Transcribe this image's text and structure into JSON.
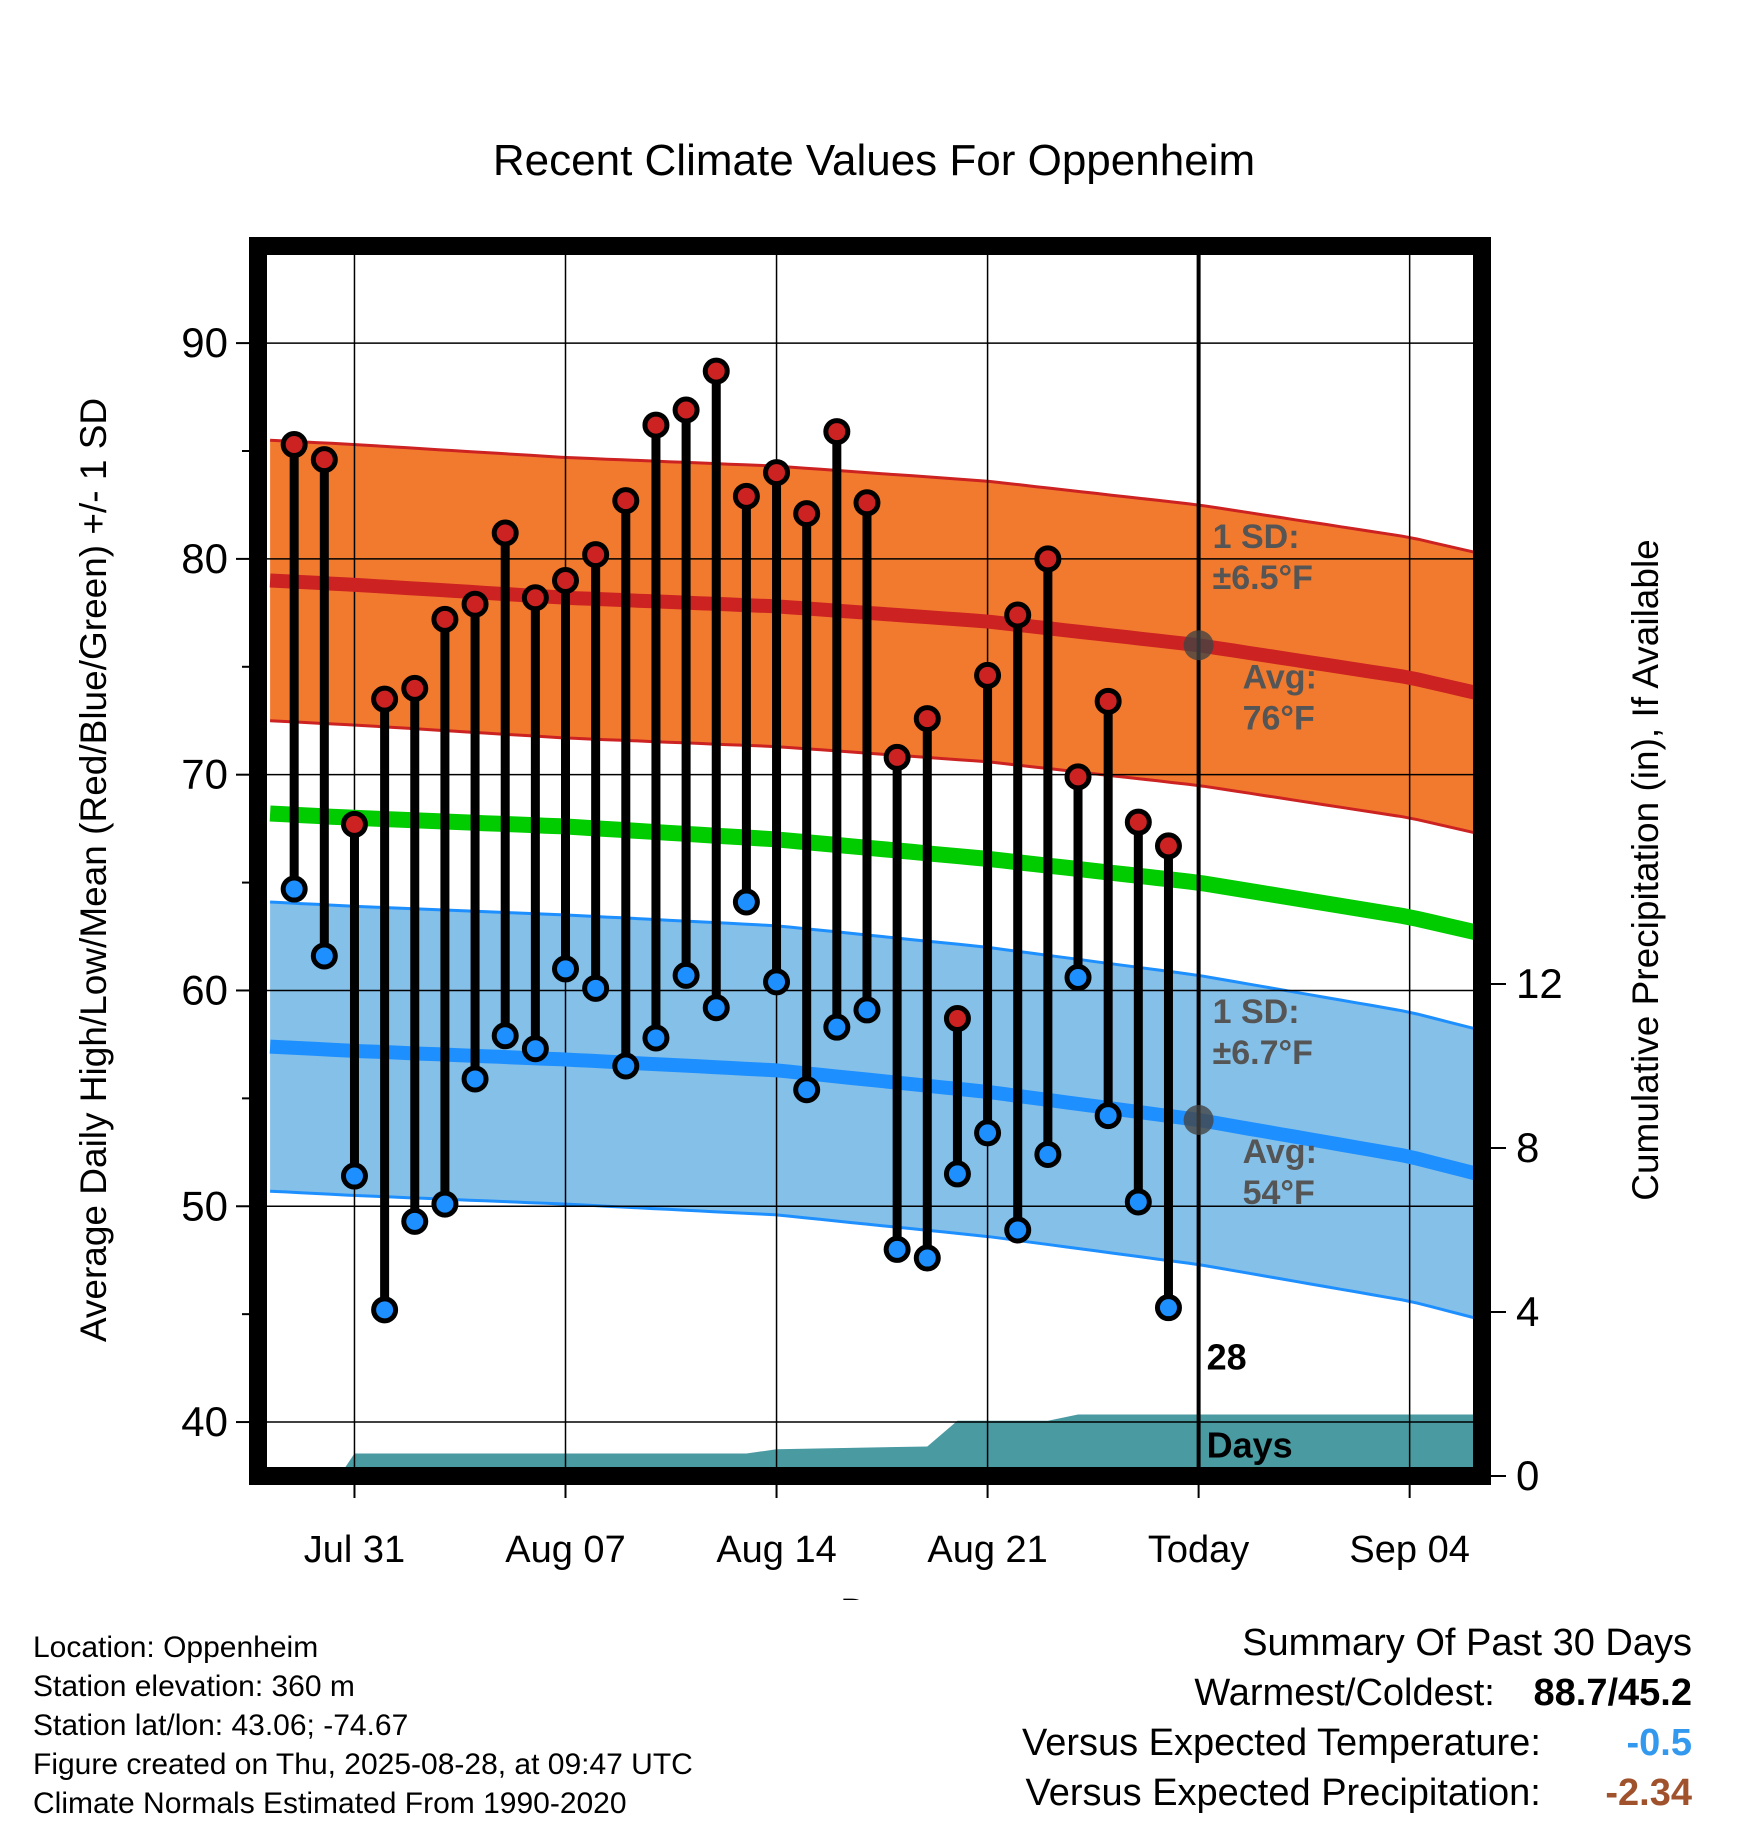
{
  "chart_data": {
    "type": "line",
    "title": "Recent Climate Values For Oppenheim",
    "xlabel": "Day",
    "ylabel_left": "Average Daily High/Low/Mean (Red/Blue/Green) +/- 1 SD",
    "ylabel_right": "Cumulative Precipitation (in), If Available",
    "x_ticks": [
      {
        "day": 0,
        "label": "Jul 31"
      },
      {
        "day": 7,
        "label": "Aug 07"
      },
      {
        "day": 14,
        "label": "Aug 14"
      },
      {
        "day": 21,
        "label": "Aug 21"
      },
      {
        "day": 28,
        "label": "Today"
      },
      {
        "day": 35,
        "label": "Sep 04"
      }
    ],
    "xlim": [
      -3.2,
      37.4
    ],
    "ylim_left": [
      37.5,
      94.5
    ],
    "y_ticks_left": [
      40,
      50,
      60,
      70,
      80,
      90
    ],
    "ylim_right": [
      0,
      30
    ],
    "y_ticks_right": [
      0,
      4,
      8,
      12
    ],
    "today_day": 28,
    "today_label": "28 Days",
    "observed": {
      "days": [
        -2,
        -1,
        0,
        1,
        2,
        3,
        4,
        5,
        6,
        7,
        8,
        9,
        10,
        11,
        12,
        13,
        14,
        15,
        16,
        17,
        18,
        19,
        20,
        21,
        22,
        23,
        24,
        25,
        26,
        27
      ],
      "highs": [
        85.3,
        84.6,
        67.7,
        73.5,
        74.0,
        77.2,
        77.9,
        81.2,
        78.2,
        79.0,
        80.2,
        82.7,
        86.2,
        86.9,
        88.7,
        82.9,
        84.0,
        82.1,
        85.9,
        82.6,
        70.8,
        72.6,
        58.7,
        74.6,
        77.4,
        80.0,
        69.9,
        73.4,
        67.8,
        66.7
      ],
      "lows": [
        64.7,
        61.6,
        51.4,
        45.2,
        49.3,
        50.1,
        55.9,
        57.9,
        57.3,
        61.0,
        60.1,
        56.5,
        57.8,
        60.7,
        59.2,
        64.1,
        60.4,
        55.4,
        58.3,
        59.1,
        48.0,
        47.6,
        51.5,
        53.4,
        48.9,
        52.4,
        60.6,
        54.2,
        50.2,
        45.3
      ]
    },
    "normals": {
      "days": [
        -2.8,
        0,
        7,
        14,
        21,
        28,
        35,
        37.8
      ],
      "high_avg": [
        79.0,
        78.8,
        78.2,
        77.8,
        77.1,
        76.0,
        74.5,
        73.6
      ],
      "high_sd": 6.5,
      "low_avg": [
        57.4,
        57.2,
        56.8,
        56.3,
        55.3,
        54.0,
        52.3,
        51.3
      ],
      "low_sd": 6.7,
      "mean_avg": [
        68.2,
        68.0,
        67.6,
        67.0,
        66.1,
        65.0,
        63.4,
        62.5
      ]
    },
    "precipitation": {
      "days": [
        -2.8,
        -0.5,
        0,
        6,
        13,
        14,
        16,
        19,
        20,
        23,
        24,
        28,
        37.8
      ],
      "cumulative": [
        0,
        0,
        0.55,
        0.55,
        0.55,
        0.65,
        0.68,
        0.72,
        1.35,
        1.35,
        1.5,
        1.5,
        1.5
      ]
    },
    "annotations": {
      "high_sd_label": [
        "1 SD:",
        "±6.5°F"
      ],
      "high_avg_label": [
        "Avg:",
        "76°F"
      ],
      "low_sd_label": [
        "1 SD:",
        "±6.7°F"
      ],
      "low_avg_label": [
        "Avg:",
        "54°F"
      ]
    },
    "colors": {
      "high_band": "#f27a2e",
      "high_line": "#cc2222",
      "low_band": "#85c0e8",
      "low_line": "#1e8fff",
      "mean_line": "#00cc00",
      "precip": "#4a9aa2",
      "annotation": "#555555"
    }
  },
  "info": {
    "location": "Location: Oppenheim",
    "elevation": "Station elevation: 360 m",
    "latlon": "Station lat/lon: 43.06; -74.67",
    "created": "Figure created on Thu, 2025-08-28, at 09:47 UTC",
    "normals": "Climate Normals Estimated From 1990-2020"
  },
  "summary": {
    "title": "Summary Of Past 30 Days",
    "warm_cold_label": "Warmest/Coldest:",
    "warm_cold_value": "88.7/45.2",
    "temp_label": "Versus Expected Temperature:",
    "temp_value": "-0.5",
    "temp_color": "#3399ee",
    "precip_label": "Versus Expected Precipitation:",
    "precip_value": "-2.34",
    "precip_color": "#a0522d"
  }
}
